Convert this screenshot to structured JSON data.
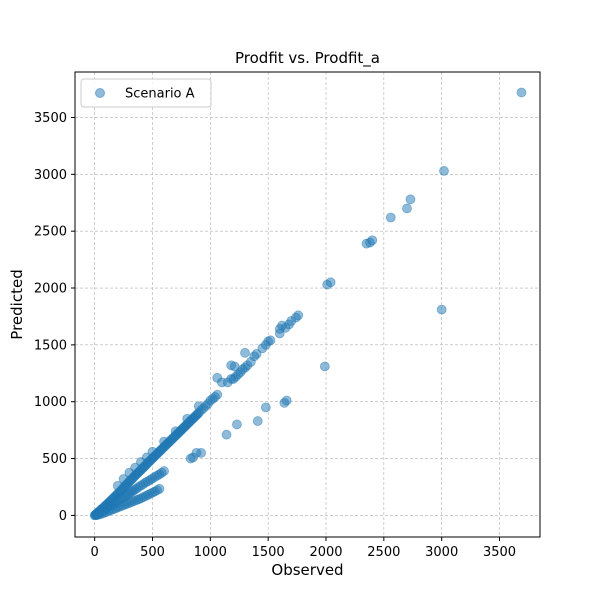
{
  "chart_data": {
    "type": "scatter",
    "title": "Prodfit vs. Prodfit_a",
    "xlabel": "Observed",
    "ylabel": "Predicted",
    "xlim": [
      -170,
      3850
    ],
    "ylim": [
      -190,
      3900
    ],
    "x_ticks": [
      0,
      500,
      1000,
      1500,
      2000,
      2500,
      3000,
      3500
    ],
    "y_ticks": [
      0,
      500,
      1000,
      1500,
      2000,
      2500,
      3000,
      3500
    ],
    "grid": true,
    "legend_position": "top-left",
    "series": [
      {
        "name": "Scenario A",
        "color": "#1f77b4",
        "points": [
          [
            0,
            0
          ],
          [
            5,
            3
          ],
          [
            10,
            8
          ],
          [
            15,
            12
          ],
          [
            20,
            18
          ],
          [
            25,
            22
          ],
          [
            30,
            27
          ],
          [
            40,
            36
          ],
          [
            50,
            45
          ],
          [
            60,
            55
          ],
          [
            70,
            63
          ],
          [
            80,
            72
          ],
          [
            90,
            82
          ],
          [
            100,
            92
          ],
          [
            110,
            101
          ],
          [
            120,
            111
          ],
          [
            130,
            120
          ],
          [
            140,
            130
          ],
          [
            150,
            140
          ],
          [
            160,
            150
          ],
          [
            170,
            160
          ],
          [
            180,
            170
          ],
          [
            190,
            180
          ],
          [
            200,
            190
          ],
          [
            210,
            200
          ],
          [
            220,
            210
          ],
          [
            230,
            220
          ],
          [
            240,
            232
          ],
          [
            250,
            243
          ],
          [
            260,
            254
          ],
          [
            270,
            265
          ],
          [
            280,
            276
          ],
          [
            290,
            287
          ],
          [
            300,
            298
          ],
          [
            310,
            308
          ],
          [
            320,
            318
          ],
          [
            330,
            328
          ],
          [
            340,
            340
          ],
          [
            350,
            350
          ],
          [
            360,
            360
          ],
          [
            370,
            370
          ],
          [
            380,
            380
          ],
          [
            390,
            390
          ],
          [
            400,
            400
          ],
          [
            410,
            410
          ],
          [
            420,
            420
          ],
          [
            430,
            430
          ],
          [
            440,
            440
          ],
          [
            450,
            452
          ],
          [
            460,
            462
          ],
          [
            470,
            472
          ],
          [
            480,
            482
          ],
          [
            490,
            492
          ],
          [
            500,
            502
          ],
          [
            510,
            512
          ],
          [
            520,
            522
          ],
          [
            530,
            532
          ],
          [
            540,
            542
          ],
          [
            550,
            552
          ],
          [
            560,
            562
          ],
          [
            570,
            572
          ],
          [
            580,
            582
          ],
          [
            590,
            592
          ],
          [
            600,
            602
          ],
          [
            610,
            612
          ],
          [
            620,
            622
          ],
          [
            630,
            632
          ],
          [
            640,
            642
          ],
          [
            650,
            652
          ],
          [
            660,
            662
          ],
          [
            670,
            672
          ],
          [
            680,
            682
          ],
          [
            690,
            692
          ],
          [
            700,
            702
          ],
          [
            710,
            712
          ],
          [
            720,
            722
          ],
          [
            730,
            732
          ],
          [
            740,
            742
          ],
          [
            750,
            752
          ],
          [
            760,
            762
          ],
          [
            770,
            772
          ],
          [
            780,
            782
          ],
          [
            790,
            792
          ],
          [
            800,
            802
          ],
          [
            810,
            812
          ],
          [
            820,
            822
          ],
          [
            830,
            832
          ],
          [
            840,
            842
          ],
          [
            850,
            852
          ],
          [
            860,
            862
          ],
          [
            870,
            872
          ],
          [
            880,
            882
          ],
          [
            890,
            892
          ],
          [
            900,
            902
          ],
          [
            920,
            925
          ],
          [
            940,
            942
          ],
          [
            960,
            962
          ],
          [
            980,
            982
          ],
          [
            1000,
            1010
          ],
          [
            1020,
            1025
          ],
          [
            1040,
            1042
          ],
          [
            1060,
            1062
          ],
          [
            15,
            5
          ],
          [
            30,
            15
          ],
          [
            45,
            25
          ],
          [
            60,
            35
          ],
          [
            75,
            45
          ],
          [
            90,
            55
          ],
          [
            105,
            65
          ],
          [
            120,
            75
          ],
          [
            135,
            85
          ],
          [
            150,
            95
          ],
          [
            165,
            105
          ],
          [
            180,
            115
          ],
          [
            195,
            125
          ],
          [
            210,
            135
          ],
          [
            225,
            145
          ],
          [
            240,
            155
          ],
          [
            255,
            165
          ],
          [
            270,
            175
          ],
          [
            285,
            185
          ],
          [
            300,
            195
          ],
          [
            315,
            205
          ],
          [
            330,
            215
          ],
          [
            345,
            225
          ],
          [
            360,
            235
          ],
          [
            380,
            250
          ],
          [
            400,
            262
          ],
          [
            420,
            275
          ],
          [
            440,
            290
          ],
          [
            460,
            300
          ],
          [
            480,
            312
          ],
          [
            500,
            325
          ],
          [
            520,
            338
          ],
          [
            540,
            350
          ],
          [
            560,
            362
          ],
          [
            580,
            375
          ],
          [
            600,
            390
          ],
          [
            20,
            2
          ],
          [
            40,
            8
          ],
          [
            60,
            14
          ],
          [
            80,
            22
          ],
          [
            100,
            30
          ],
          [
            120,
            38
          ],
          [
            140,
            46
          ],
          [
            160,
            54
          ],
          [
            180,
            62
          ],
          [
            200,
            70
          ],
          [
            220,
            78
          ],
          [
            240,
            86
          ],
          [
            260,
            94
          ],
          [
            280,
            102
          ],
          [
            300,
            110
          ],
          [
            320,
            118
          ],
          [
            340,
            126
          ],
          [
            360,
            134
          ],
          [
            380,
            142
          ],
          [
            400,
            150
          ],
          [
            420,
            160
          ],
          [
            440,
            170
          ],
          [
            460,
            180
          ],
          [
            480,
            190
          ],
          [
            500,
            200
          ],
          [
            520,
            210
          ],
          [
            540,
            222
          ],
          [
            560,
            234
          ],
          [
            200,
            260
          ],
          [
            250,
            320
          ],
          [
            300,
            375
          ],
          [
            350,
            420
          ],
          [
            400,
            470
          ],
          [
            450,
            510
          ],
          [
            500,
            560
          ],
          [
            600,
            650
          ],
          [
            700,
            740
          ],
          [
            800,
            850
          ],
          [
            900,
            960
          ],
          [
            1100,
            1170
          ],
          [
            1150,
            1170
          ],
          [
            1180,
            1200
          ],
          [
            1200,
            1200
          ],
          [
            1220,
            1220
          ],
          [
            1240,
            1240
          ],
          [
            1260,
            1260
          ],
          [
            1280,
            1285
          ],
          [
            1300,
            1300
          ],
          [
            1320,
            1320
          ],
          [
            1350,
            1350
          ],
          [
            1380,
            1400
          ],
          [
            1400,
            1420
          ],
          [
            1450,
            1470
          ],
          [
            1480,
            1500
          ],
          [
            1500,
            1530
          ],
          [
            1520,
            1540
          ],
          [
            1600,
            1600
          ],
          [
            1650,
            1650
          ],
          [
            1680,
            1680
          ],
          [
            1700,
            1710
          ],
          [
            1740,
            1740
          ],
          [
            1760,
            1760
          ],
          [
            1600,
            1640
          ],
          [
            1620,
            1670
          ],
          [
            1060,
            1210
          ],
          [
            1180,
            1320
          ],
          [
            1210,
            1310
          ],
          [
            1300,
            1430
          ],
          [
            830,
            500
          ],
          [
            850,
            510
          ],
          [
            880,
            550
          ],
          [
            920,
            550
          ],
          [
            1140,
            710
          ],
          [
            1230,
            800
          ],
          [
            1410,
            830
          ],
          [
            1480,
            950
          ],
          [
            1640,
            990
          ],
          [
            1660,
            1010
          ],
          [
            1990,
            1310
          ],
          [
            3000,
            1810
          ],
          [
            2010,
            2030
          ],
          [
            2040,
            2050
          ],
          [
            2350,
            2390
          ],
          [
            2380,
            2400
          ],
          [
            2400,
            2420
          ],
          [
            2560,
            2620
          ],
          [
            2700,
            2700
          ],
          [
            2730,
            2780
          ],
          [
            3020,
            3030
          ],
          [
            3690,
            3720
          ]
        ]
      }
    ]
  }
}
